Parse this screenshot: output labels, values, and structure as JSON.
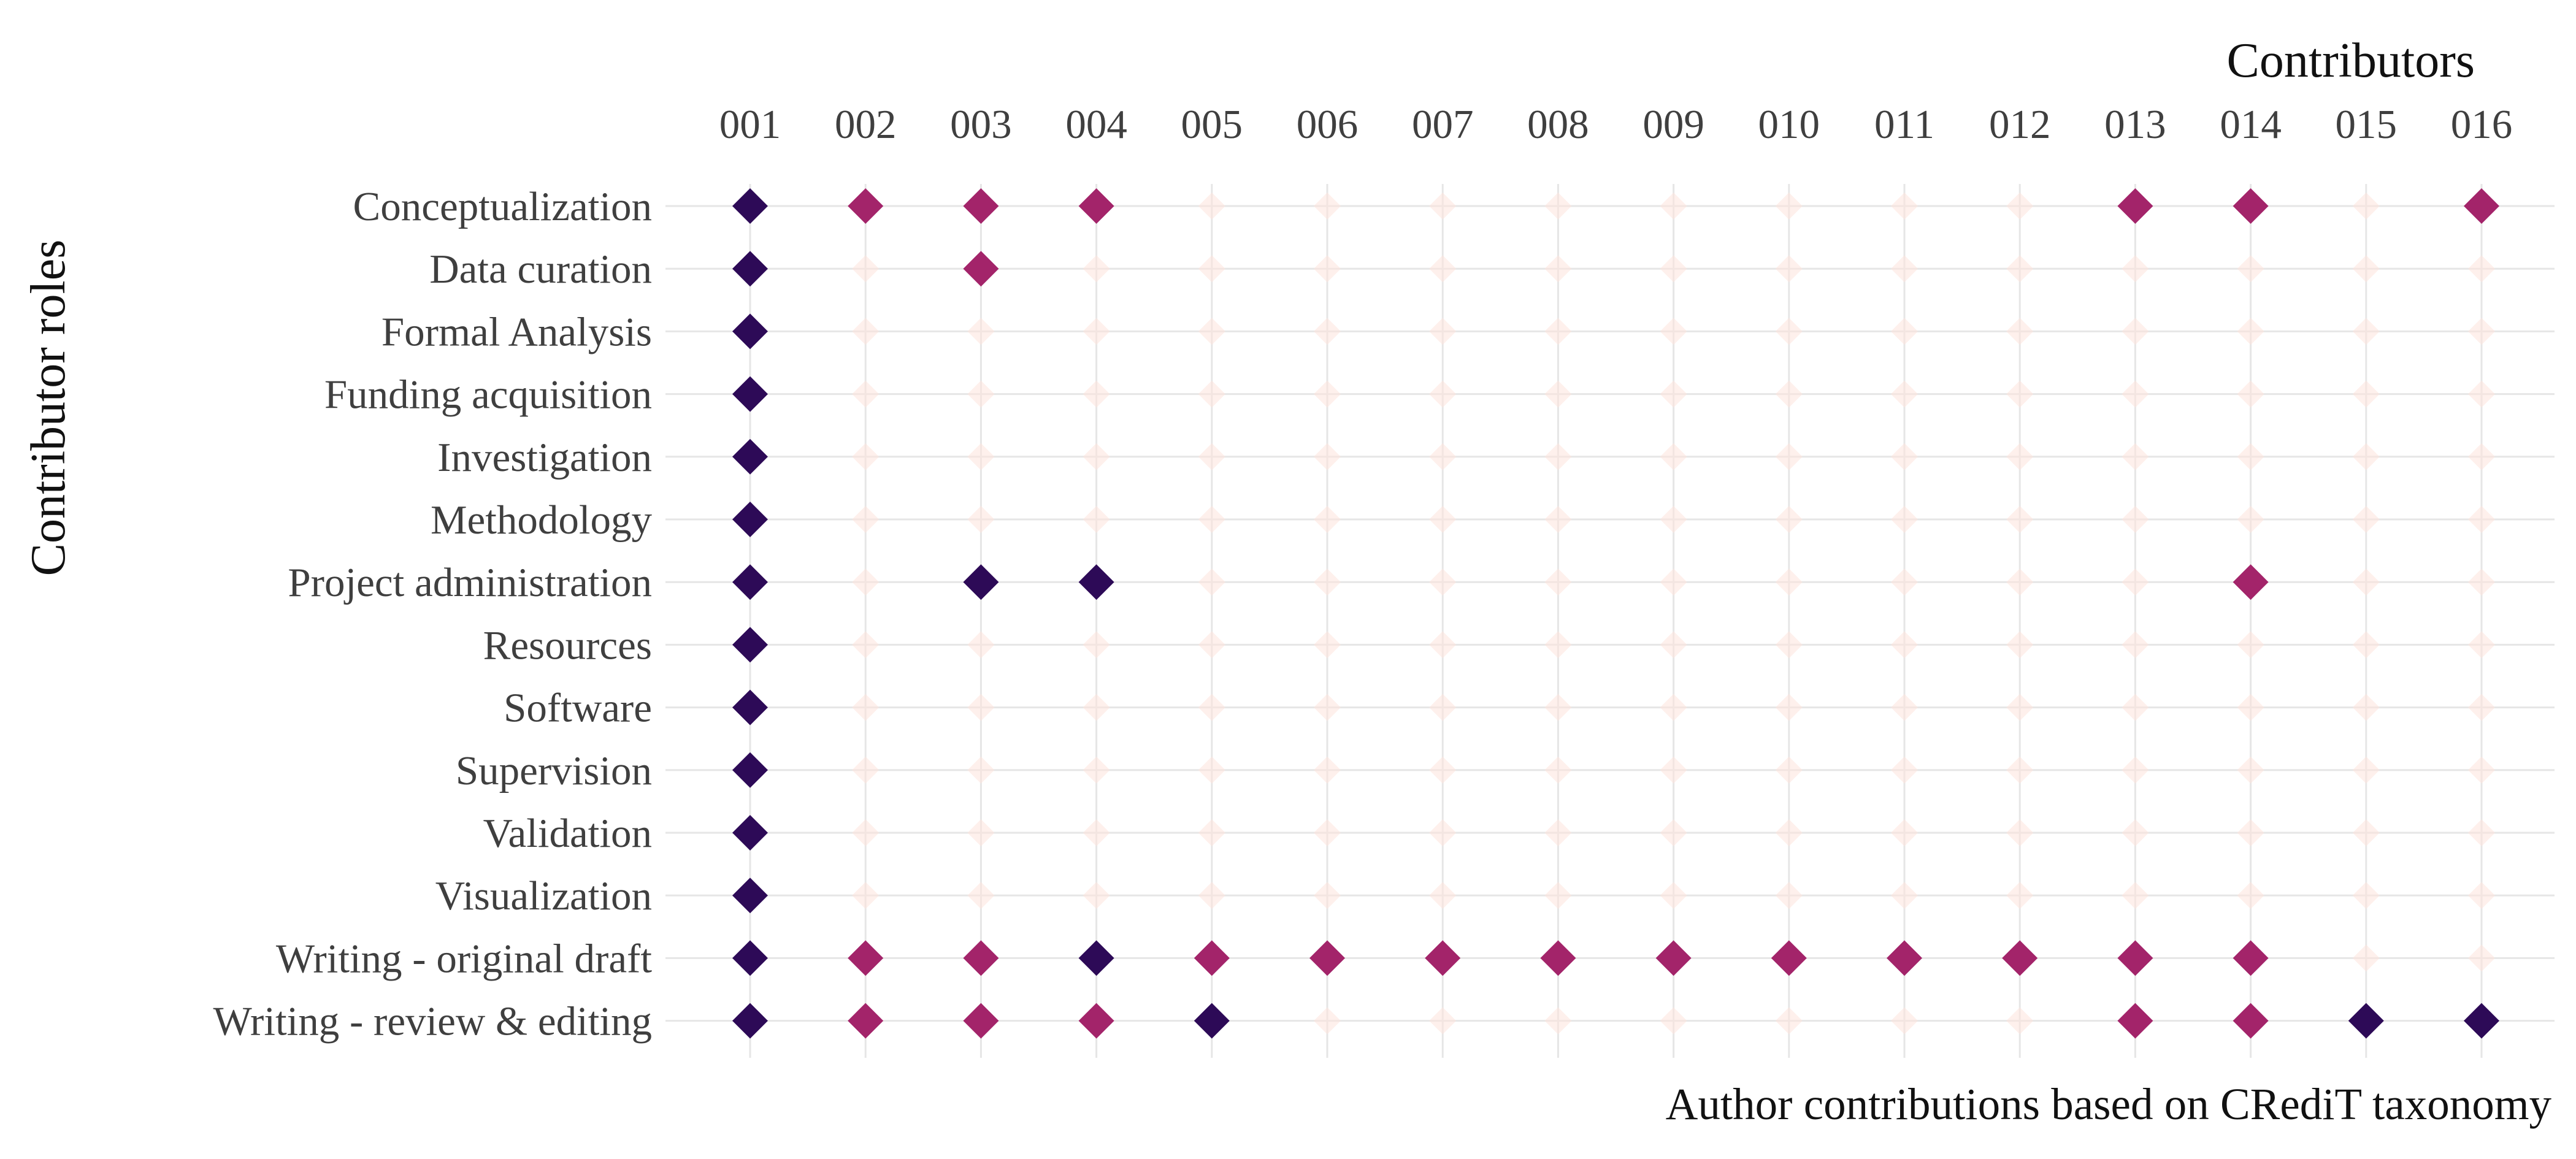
{
  "chart_data": {
    "type": "scatter",
    "marker": "diamond",
    "x_axis_position": "top",
    "grid": true,
    "xlabel": "Contributors",
    "ylabel": "Contributor roles",
    "caption": "Author contributions based on CRediT taxonomy",
    "x": [
      "001",
      "002",
      "003",
      "004",
      "005",
      "006",
      "007",
      "008",
      "009",
      "010",
      "011",
      "012",
      "013",
      "014",
      "015",
      "016"
    ],
    "y": [
      "Conceptualization",
      "Data curation",
      "Formal Analysis",
      "Funding acquisition",
      "Investigation",
      "Methodology",
      "Project administration",
      "Resources",
      "Software",
      "Supervision",
      "Validation",
      "Visualization",
      "Writing - original draft",
      "Writing - review & editing"
    ],
    "colors": {
      "primary": "#2d0a57",
      "secondary": "#a3246a",
      "faint": "#fde4dc",
      "grid": "#e6e6e6"
    },
    "matrix": [
      [
        1,
        2,
        2,
        2,
        0,
        0,
        0,
        0,
        0,
        0,
        0,
        0,
        2,
        2,
        0,
        2
      ],
      [
        1,
        0,
        2,
        0,
        0,
        0,
        0,
        0,
        0,
        0,
        0,
        0,
        0,
        0,
        0,
        0
      ],
      [
        1,
        0,
        0,
        0,
        0,
        0,
        0,
        0,
        0,
        0,
        0,
        0,
        0,
        0,
        0,
        0
      ],
      [
        1,
        0,
        0,
        0,
        0,
        0,
        0,
        0,
        0,
        0,
        0,
        0,
        0,
        0,
        0,
        0
      ],
      [
        1,
        0,
        0,
        0,
        0,
        0,
        0,
        0,
        0,
        0,
        0,
        0,
        0,
        0,
        0,
        0
      ],
      [
        1,
        0,
        0,
        0,
        0,
        0,
        0,
        0,
        0,
        0,
        0,
        0,
        0,
        0,
        0,
        0
      ],
      [
        1,
        0,
        1,
        1,
        0,
        0,
        0,
        0,
        0,
        0,
        0,
        0,
        0,
        2,
        0,
        0
      ],
      [
        1,
        0,
        0,
        0,
        0,
        0,
        0,
        0,
        0,
        0,
        0,
        0,
        0,
        0,
        0,
        0
      ],
      [
        1,
        0,
        0,
        0,
        0,
        0,
        0,
        0,
        0,
        0,
        0,
        0,
        0,
        0,
        0,
        0
      ],
      [
        1,
        0,
        0,
        0,
        0,
        0,
        0,
        0,
        0,
        0,
        0,
        0,
        0,
        0,
        0,
        0
      ],
      [
        1,
        0,
        0,
        0,
        0,
        0,
        0,
        0,
        0,
        0,
        0,
        0,
        0,
        0,
        0,
        0
      ],
      [
        1,
        0,
        0,
        0,
        0,
        0,
        0,
        0,
        0,
        0,
        0,
        0,
        0,
        0,
        0,
        0
      ],
      [
        1,
        2,
        2,
        1,
        2,
        2,
        2,
        2,
        2,
        2,
        2,
        2,
        2,
        2,
        0,
        0
      ],
      [
        1,
        2,
        2,
        2,
        1,
        0,
        0,
        0,
        0,
        0,
        0,
        0,
        2,
        2,
        1,
        1
      ]
    ]
  }
}
